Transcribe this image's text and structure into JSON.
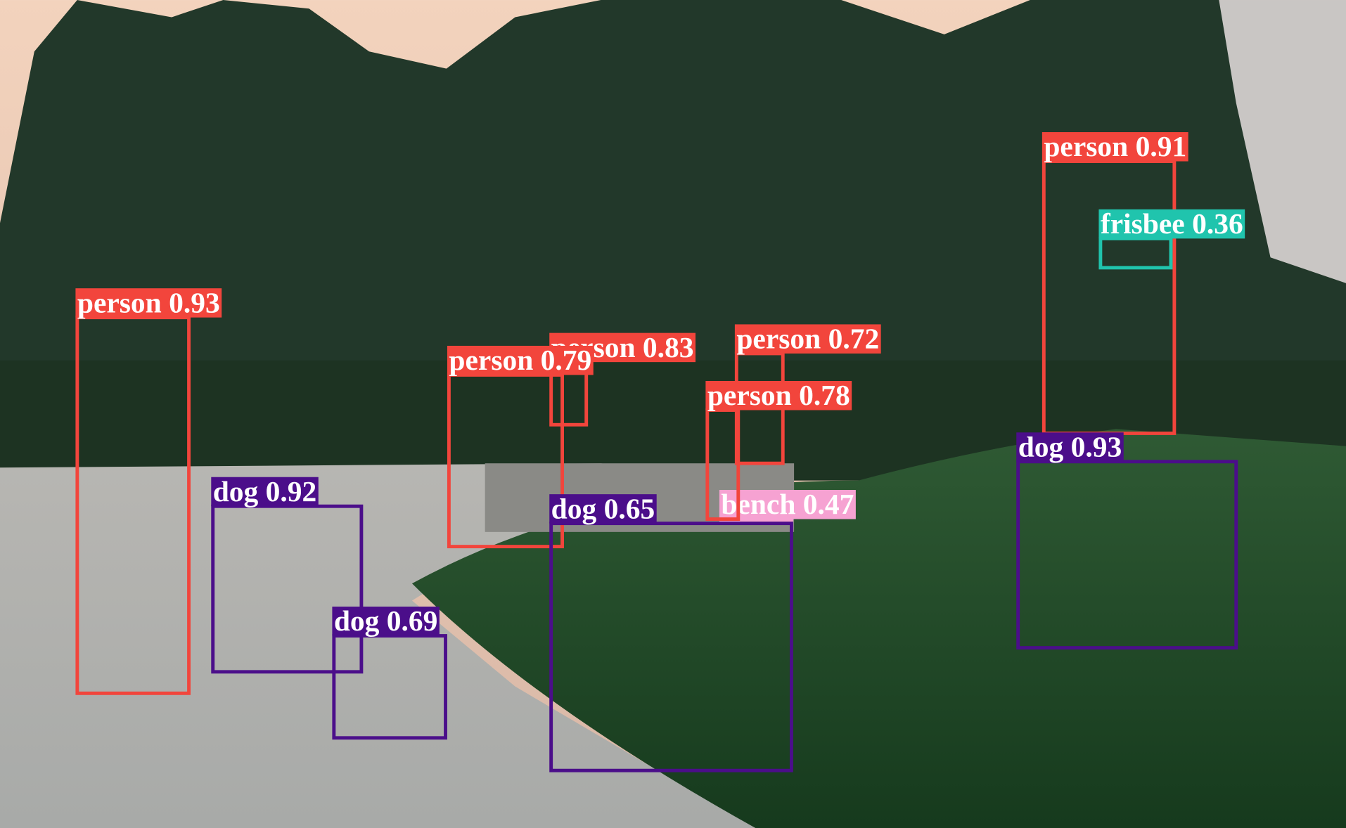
{
  "detections": [
    {
      "label": "person 0.93"
    },
    {
      "label": "dog 0.92"
    },
    {
      "label": "dog 0.69"
    },
    {
      "label": "person 0.83"
    },
    {
      "label": "person 0.79"
    },
    {
      "label": "person 0.72"
    },
    {
      "label": "bench 0.47"
    },
    {
      "label": "person 0.78"
    },
    {
      "label": "dog 0.65"
    },
    {
      "label": "person 0.91"
    },
    {
      "label": "frisbee 0.36"
    },
    {
      "label": "dog 0.93"
    }
  ]
}
